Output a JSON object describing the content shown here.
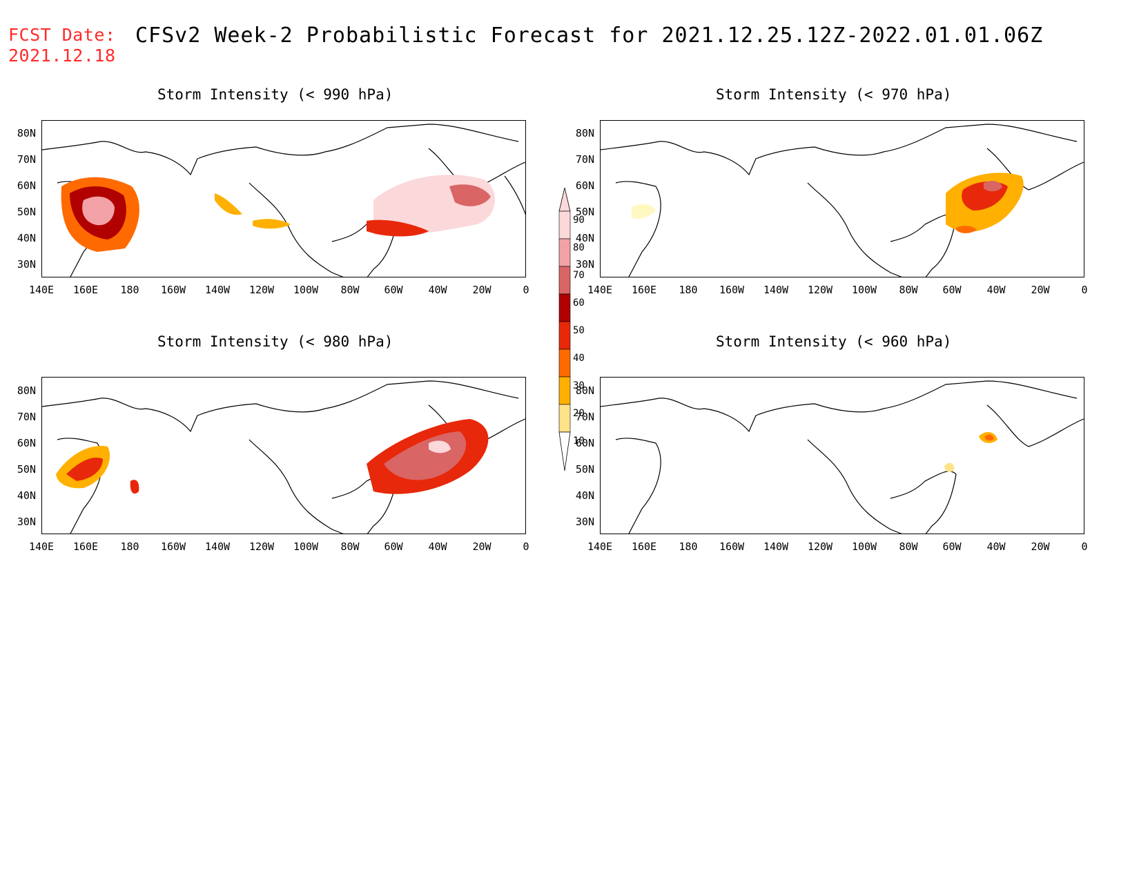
{
  "header": {
    "fcst_label": "FCST Date:",
    "fcst_date": "2021.12.18",
    "title": "CFSv2 Week-2 Probabilistic Forecast for 2021.12.25.12Z-2022.01.01.06Z"
  },
  "axes": {
    "lat_labels": [
      "80N",
      "70N",
      "60N",
      "50N",
      "40N",
      "30N"
    ],
    "lon_labels": [
      "140E",
      "160E",
      "180",
      "160W",
      "140W",
      "120W",
      "100W",
      "80W",
      "60W",
      "40W",
      "20W",
      "0"
    ]
  },
  "panels": [
    {
      "id": "p990",
      "title": "Storm Intensity (< 990 hPa)"
    },
    {
      "id": "p970",
      "title": "Storm Intensity (< 970 hPa)"
    },
    {
      "id": "p980",
      "title": "Storm Intensity (< 980 hPa)"
    },
    {
      "id": "p960",
      "title": "Storm Intensity (< 960 hPa)"
    }
  ],
  "legend": {
    "levels": [
      "10",
      "20",
      "30",
      "40",
      "50",
      "60",
      "70",
      "80",
      "90"
    ],
    "colors": [
      "#fff8c0",
      "#ffe38a",
      "#ffb000",
      "#ff6a00",
      "#e8280a",
      "#b00000",
      "#d96565",
      "#f2a2a6",
      "#fbd8da"
    ]
  },
  "colors": {
    "title_red": "#ff2a2a"
  }
}
